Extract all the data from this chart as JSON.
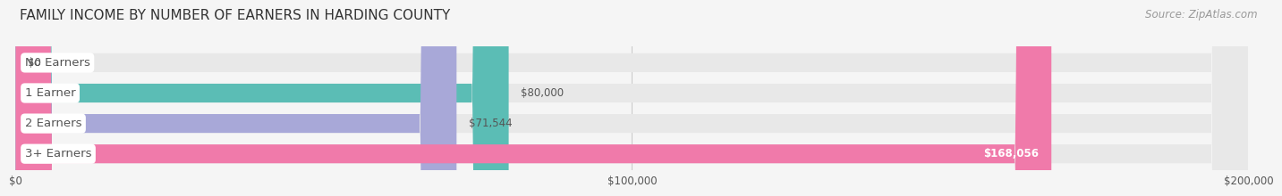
{
  "title": "FAMILY INCOME BY NUMBER OF EARNERS IN HARDING COUNTY",
  "source": "Source: ZipAtlas.com",
  "categories": [
    "No Earners",
    "1 Earner",
    "2 Earners",
    "3+ Earners"
  ],
  "values": [
    0,
    80000,
    71544,
    168056
  ],
  "labels": [
    "$0",
    "$80,000",
    "$71,544",
    "$168,056"
  ],
  "bar_colors": [
    "#c9a0c8",
    "#5bbdb5",
    "#a8a8d8",
    "#f07aaa"
  ],
  "bar_bg_color": "#e8e8e8",
  "background_color": "#f5f5f5",
  "xlim": [
    0,
    200000
  ],
  "xtick_labels": [
    "$0",
    "$100,000",
    "$200,000"
  ],
  "xtick_values": [
    0,
    100000,
    200000
  ],
  "title_fontsize": 11,
  "label_fontsize": 8.5,
  "source_fontsize": 8.5,
  "bar_height": 0.62,
  "category_fontsize": 9.5,
  "grid_color": "#cccccc",
  "text_color": "#555555",
  "title_color": "#333333",
  "source_color": "#999999",
  "label_inside_color": "#ffffff",
  "label_outside_color": "#555555"
}
